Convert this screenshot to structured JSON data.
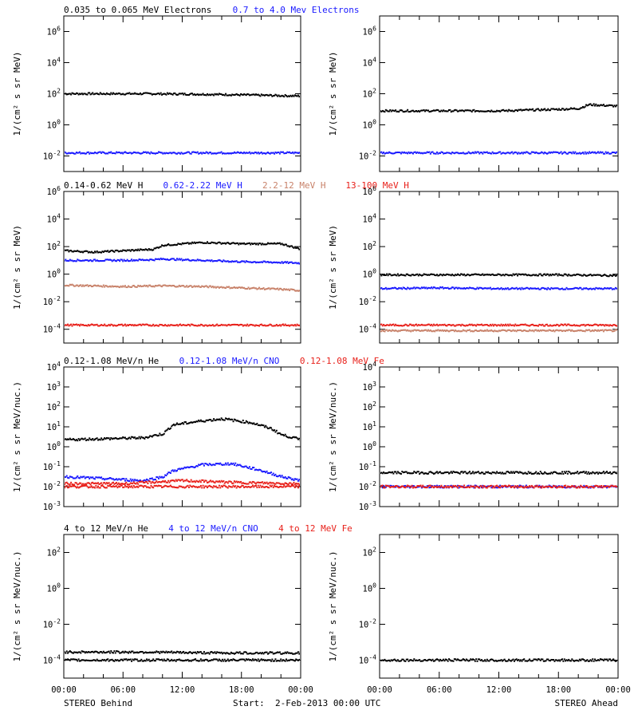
{
  "footer": {
    "left": "STEREO Behind",
    "center": "Start:  2-Feb-2013 00:00 UTC",
    "right": "STEREO Ahead"
  },
  "chart_data": [
    {
      "type": "scatter",
      "row": 0,
      "log": true,
      "ylabel": "1/(cm² s sr MeV)",
      "header": [
        {
          "text": "0.035 to 0.065 MeV Electrons",
          "color": "#000000"
        },
        {
          "text": "0.7 to 4.0 Mev Electrons",
          "color": "#1a1aff"
        }
      ],
      "ylim": [
        -3,
        7
      ],
      "ticks": [
        -2,
        0,
        2,
        4,
        6
      ],
      "xticks": [
        "00:00",
        "06:00",
        "12:00",
        "18:00",
        "00:00"
      ],
      "behind": [
        {
          "color": "#000000",
          "pts": [
            [
              0,
              2.0
            ],
            [
              4,
              2.0
            ],
            [
              8,
              2.0
            ],
            [
              12,
              1.98
            ],
            [
              16,
              1.95
            ],
            [
              20,
              1.9
            ],
            [
              24,
              1.85
            ]
          ]
        },
        {
          "color": "#1a1aff",
          "pts": [
            [
              0,
              -1.8
            ],
            [
              4,
              -1.8
            ],
            [
              8,
              -1.8
            ],
            [
              12,
              -1.8
            ],
            [
              16,
              -1.8
            ],
            [
              20,
              -1.8
            ],
            [
              24,
              -1.8
            ]
          ]
        }
      ],
      "ahead": [
        {
          "color": "#000000",
          "pts": [
            [
              0,
              0.9
            ],
            [
              6,
              0.9
            ],
            [
              12,
              0.9
            ],
            [
              18,
              1.0
            ],
            [
              20,
              1.05
            ],
            [
              21,
              1.3
            ],
            [
              24,
              1.2
            ]
          ]
        },
        {
          "color": "#1a1aff",
          "pts": [
            [
              0,
              -1.8
            ],
            [
              6,
              -1.8
            ],
            [
              12,
              -1.8
            ],
            [
              18,
              -1.8
            ],
            [
              24,
              -1.8
            ]
          ]
        }
      ]
    },
    {
      "type": "scatter",
      "row": 1,
      "log": true,
      "ylabel": "1/(cm² s sr MeV)",
      "header": [
        {
          "text": "0.14-0.62 MeV H",
          "color": "#000000"
        },
        {
          "text": "0.62-2.22 MeV H",
          "color": "#1a1aff"
        },
        {
          "text": "2.2-12 MeV H",
          "color": "#c8826a"
        },
        {
          "text": "13-100 MeV H",
          "color": "#e8201a"
        }
      ],
      "ylim": [
        -5,
        6
      ],
      "ticks": [
        -4,
        -2,
        0,
        2,
        4,
        6
      ],
      "behind": [
        {
          "color": "#000000",
          "pts": [
            [
              0,
              1.7
            ],
            [
              3,
              1.6
            ],
            [
              6,
              1.7
            ],
            [
              9,
              1.8
            ],
            [
              10,
              2.1
            ],
            [
              14,
              2.3
            ],
            [
              18,
              2.2
            ],
            [
              22,
              2.2
            ],
            [
              24,
              1.8
            ]
          ]
        },
        {
          "color": "#1a1aff",
          "pts": [
            [
              0,
              1.0
            ],
            [
              3,
              1.0
            ],
            [
              6,
              1.0
            ],
            [
              9,
              1.05
            ],
            [
              10,
              1.1
            ],
            [
              14,
              1.0
            ],
            [
              18,
              0.9
            ],
            [
              22,
              0.85
            ],
            [
              24,
              0.8
            ]
          ]
        },
        {
          "color": "#c8826a",
          "pts": [
            [
              0,
              -0.8
            ],
            [
              3,
              -0.85
            ],
            [
              6,
              -0.9
            ],
            [
              10,
              -0.85
            ],
            [
              14,
              -0.9
            ],
            [
              18,
              -1.0
            ],
            [
              22,
              -1.1
            ],
            [
              24,
              -1.2
            ]
          ]
        },
        {
          "color": "#e8201a",
          "pts": [
            [
              0,
              -3.7
            ],
            [
              6,
              -3.7
            ],
            [
              12,
              -3.7
            ],
            [
              18,
              -3.7
            ],
            [
              24,
              -3.7
            ]
          ]
        }
      ],
      "ahead": [
        {
          "color": "#000000",
          "pts": [
            [
              0,
              -0.05
            ],
            [
              6,
              -0.05
            ],
            [
              12,
              -0.05
            ],
            [
              18,
              -0.05
            ],
            [
              24,
              -0.1
            ]
          ]
        },
        {
          "color": "#1a1aff",
          "pts": [
            [
              0,
              -1.05
            ],
            [
              6,
              -1.0
            ],
            [
              12,
              -1.05
            ],
            [
              18,
              -1.05
            ],
            [
              24,
              -1.05
            ]
          ]
        },
        {
          "color": "#e8201a",
          "pts": [
            [
              0,
              -3.7
            ],
            [
              6,
              -3.7
            ],
            [
              12,
              -3.7
            ],
            [
              18,
              -3.7
            ],
            [
              24,
              -3.7
            ]
          ]
        },
        {
          "color": "#c8826a",
          "pts": [
            [
              0,
              -4.1
            ],
            [
              12,
              -4.1
            ],
            [
              24,
              -4.1
            ]
          ]
        }
      ]
    },
    {
      "type": "scatter",
      "row": 2,
      "log": true,
      "ylabel": "1/(cm² s sr MeV/nuc.)",
      "header": [
        {
          "text": "0.12-1.08 MeV/n He",
          "color": "#000000"
        },
        {
          "text": "0.12-1.08 MeV/n CNO",
          "color": "#1a1aff"
        },
        {
          "text": "0.12-1.08 MeV Fe",
          "color": "#e8201a"
        }
      ],
      "ylim": [
        -3,
        4
      ],
      "ticks": [
        -3,
        -2,
        -1,
        0,
        1,
        2,
        3,
        4
      ],
      "behind": [
        {
          "color": "#000000",
          "pts": [
            [
              0,
              0.35
            ],
            [
              4,
              0.4
            ],
            [
              8,
              0.45
            ],
            [
              10,
              0.65
            ],
            [
              11,
              1.1
            ],
            [
              14,
              1.3
            ],
            [
              16,
              1.4
            ],
            [
              19,
              1.2
            ],
            [
              21,
              0.9
            ],
            [
              22,
              0.6
            ],
            [
              24,
              0.35
            ]
          ]
        },
        {
          "color": "#1a1aff",
          "pts": [
            [
              0,
              -1.5
            ],
            [
              4,
              -1.6
            ],
            [
              8,
              -1.7
            ],
            [
              10,
              -1.5
            ],
            [
              11,
              -1.2
            ],
            [
              14,
              -0.9
            ],
            [
              17,
              -0.85
            ],
            [
              20,
              -1.2
            ],
            [
              22,
              -1.5
            ],
            [
              24,
              -1.7
            ]
          ]
        },
        {
          "color": "#e8201a",
          "pts": [
            [
              0,
              -1.85
            ],
            [
              6,
              -1.85
            ],
            [
              12,
              -1.7
            ],
            [
              18,
              -1.8
            ],
            [
              24,
              -1.85
            ]
          ]
        },
        {
          "color": "#e8201a",
          "pts": [
            [
              0,
              -2.0
            ],
            [
              6,
              -2.0
            ],
            [
              12,
              -2.0
            ],
            [
              18,
              -2.0
            ],
            [
              24,
              -2.0
            ]
          ]
        }
      ],
      "ahead": [
        {
          "color": "#000000",
          "pts": [
            [
              0,
              -1.3
            ],
            [
              6,
              -1.3
            ],
            [
              12,
              -1.3
            ],
            [
              18,
              -1.3
            ],
            [
              24,
              -1.3
            ]
          ]
        },
        {
          "color": "#1a1aff",
          "pts": [
            [
              0,
              -2.0
            ],
            [
              24,
              -2.0
            ]
          ]
        },
        {
          "color": "#e8201a",
          "pts": [
            [
              0,
              -2.0
            ],
            [
              24,
              -2.0
            ]
          ]
        }
      ]
    },
    {
      "type": "scatter",
      "row": 3,
      "log": true,
      "ylabel": "1/(cm² s sr MeV/nuc.)",
      "header": [
        {
          "text": "4 to 12 MeV/n He",
          "color": "#000000"
        },
        {
          "text": "4 to 12 MeV/n CNO",
          "color": "#1a1aff"
        },
        {
          "text": "4 to 12 MeV Fe",
          "color": "#e8201a"
        }
      ],
      "ylim": [
        -5,
        3
      ],
      "ticks": [
        -4,
        -2,
        0,
        2
      ],
      "behind": [
        {
          "color": "#000000",
          "pts": [
            [
              0,
              -3.55
            ],
            [
              8,
              -3.55
            ],
            [
              16,
              -3.6
            ],
            [
              24,
              -3.6
            ]
          ]
        },
        {
          "color": "#000000",
          "pts": [
            [
              0,
              -4.0
            ],
            [
              24,
              -4.0
            ]
          ]
        }
      ],
      "ahead": [
        {
          "color": "#000000",
          "pts": [
            [
              0,
              -4.0
            ],
            [
              24,
              -4.0
            ]
          ]
        }
      ]
    }
  ]
}
